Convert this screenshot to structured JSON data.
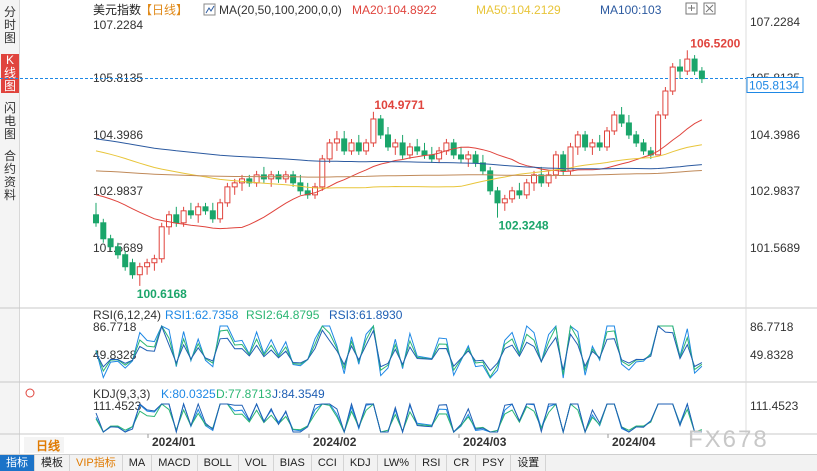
{
  "sidebar": {
    "tabs": [
      {
        "label": "分时图",
        "active": false
      },
      {
        "label": "K线图",
        "active": true
      },
      {
        "label": "闪电图",
        "active": false
      },
      {
        "label": "合约资料",
        "active": false
      }
    ]
  },
  "header": {
    "instrument": "美元指数",
    "period_tag": "【日线】",
    "ma_params": "MA(20,50,100,200,0,0)",
    "ma20_label": "MA20:104.8922",
    "ma50_label": "MA50:104.2129",
    "ma100_label": "MA100:103"
  },
  "window_icons": [
    "settings-icon",
    "close-icon"
  ],
  "colors": {
    "up": "#e0443d",
    "down": "#1aa56a",
    "ma20": "#e0443d",
    "ma50": "#e8c53a",
    "ma100": "#2c5aa0",
    "ma200": "#c08a5a",
    "rsi1": "#1e88e5",
    "rsi2": "#2bb673",
    "rsi3": "#1f5fb4",
    "k": "#1e88e5",
    "d": "#2bb673",
    "j": "#1f5fb4",
    "current": "#1e88e5"
  },
  "price_axis": {
    "ticks": [
      "107.2284",
      "105.8135",
      "104.3986",
      "102.9837",
      "101.5689"
    ]
  },
  "current_price": "105.8134",
  "annotations": {
    "high": "106.5200",
    "peak_feb": "104.9771",
    "low_jan": "100.6168",
    "low_mar": "102.3248"
  },
  "rsi": {
    "title": "RSI(6,12,24)",
    "rsi1": "RSI1:62.7358",
    "rsi2": "RSI2:64.8795",
    "rsi3": "RSI3:61.8930",
    "ticks": [
      "86.7718",
      "49.8328"
    ]
  },
  "kdj": {
    "title": "KDJ(9,3,3)",
    "k": "K:80.0325",
    "d": "D:77.8713",
    "j": "J:84.3549",
    "ticks": [
      "111.4523"
    ]
  },
  "date_axis": {
    "labels": [
      "2024/01",
      "2024/02",
      "2024/03",
      "2024/04"
    ]
  },
  "period_label": "日线",
  "watermark": "FX678",
  "toolbar": {
    "items": [
      "指标",
      "模板",
      "VIP指标",
      "MA",
      "MACD",
      "BOLL",
      "VOL",
      "BIAS",
      "CCI",
      "KDJ",
      "LW%",
      "RSI",
      "CR",
      "PSY",
      "设置"
    ]
  },
  "chart_data": {
    "type": "candlestick",
    "title": "美元指数 日线",
    "ylim": [
      100.3,
      107.5
    ],
    "candles": [
      [
        102.4,
        102.7,
        102.1,
        102.2
      ],
      [
        102.2,
        102.3,
        101.7,
        101.8
      ],
      [
        101.8,
        101.9,
        101.5,
        101.6
      ],
      [
        101.6,
        101.7,
        101.3,
        101.4
      ],
      [
        101.4,
        101.5,
        101.0,
        101.1
      ],
      [
        101.2,
        101.3,
        100.8,
        100.9
      ],
      [
        100.9,
        101.2,
        100.62,
        101.1
      ],
      [
        101.1,
        101.3,
        100.9,
        101.2
      ],
      [
        101.2,
        101.4,
        101.0,
        101.3
      ],
      [
        101.3,
        102.2,
        101.2,
        102.1
      ],
      [
        102.1,
        102.5,
        101.9,
        102.4
      ],
      [
        102.4,
        102.6,
        102.1,
        102.2
      ],
      [
        102.2,
        102.6,
        102.1,
        102.5
      ],
      [
        102.5,
        102.7,
        102.3,
        102.4
      ],
      [
        102.4,
        102.7,
        102.2,
        102.6
      ],
      [
        102.6,
        102.7,
        102.4,
        102.5
      ],
      [
        102.5,
        102.7,
        102.2,
        102.3
      ],
      [
        102.3,
        102.8,
        102.2,
        102.7
      ],
      [
        102.7,
        103.2,
        102.6,
        103.1
      ],
      [
        103.1,
        103.3,
        102.9,
        103.2
      ],
      [
        103.2,
        103.4,
        103.0,
        103.3
      ],
      [
        103.3,
        103.4,
        103.1,
        103.2
      ],
      [
        103.2,
        103.5,
        103.1,
        103.4
      ],
      [
        103.4,
        103.6,
        103.2,
        103.3
      ],
      [
        103.3,
        103.5,
        103.1,
        103.4
      ],
      [
        103.4,
        103.5,
        103.2,
        103.3
      ],
      [
        103.3,
        103.5,
        103.2,
        103.4
      ],
      [
        103.4,
        103.5,
        103.1,
        103.2
      ],
      [
        103.2,
        103.4,
        102.9,
        103.0
      ],
      [
        103.0,
        103.2,
        102.8,
        102.9
      ],
      [
        102.9,
        103.2,
        102.8,
        103.1
      ],
      [
        103.1,
        103.9,
        103.0,
        103.8
      ],
      [
        103.8,
        104.3,
        103.7,
        104.2
      ],
      [
        104.2,
        104.5,
        104.0,
        104.3
      ],
      [
        104.3,
        104.5,
        103.9,
        104.0
      ],
      [
        104.0,
        104.3,
        103.9,
        104.2
      ],
      [
        104.2,
        104.4,
        103.9,
        104.0
      ],
      [
        104.0,
        104.3,
        103.9,
        104.2
      ],
      [
        104.2,
        104.98,
        104.1,
        104.8
      ],
      [
        104.8,
        104.9,
        104.3,
        104.4
      ],
      [
        104.4,
        104.6,
        104.0,
        104.1
      ],
      [
        104.1,
        104.3,
        103.9,
        104.2
      ],
      [
        104.2,
        104.4,
        103.8,
        103.9
      ],
      [
        103.9,
        104.2,
        103.8,
        104.1
      ],
      [
        104.1,
        104.3,
        103.9,
        104.0
      ],
      [
        104.0,
        104.2,
        103.8,
        103.9
      ],
      [
        103.9,
        104.1,
        103.7,
        103.8
      ],
      [
        103.8,
        104.1,
        103.7,
        104.0
      ],
      [
        104.0,
        104.3,
        103.9,
        104.2
      ],
      [
        104.2,
        104.3,
        103.8,
        103.9
      ],
      [
        103.9,
        104.1,
        103.7,
        103.8
      ],
      [
        103.8,
        104.0,
        103.6,
        103.9
      ],
      [
        103.9,
        104.0,
        103.6,
        103.7
      ],
      [
        103.7,
        103.9,
        103.4,
        103.5
      ],
      [
        103.5,
        103.6,
        102.9,
        103.0
      ],
      [
        103.0,
        103.1,
        102.33,
        102.7
      ],
      [
        102.7,
        102.9,
        102.5,
        102.8
      ],
      [
        102.8,
        103.1,
        102.7,
        103.0
      ],
      [
        103.0,
        103.2,
        102.8,
        102.9
      ],
      [
        102.9,
        103.3,
        102.8,
        103.2
      ],
      [
        103.2,
        103.5,
        103.0,
        103.4
      ],
      [
        103.4,
        103.6,
        103.1,
        103.2
      ],
      [
        103.2,
        103.5,
        103.1,
        103.4
      ],
      [
        103.4,
        104.0,
        103.3,
        103.9
      ],
      [
        103.9,
        104.0,
        103.4,
        103.5
      ],
      [
        103.5,
        104.2,
        103.4,
        104.1
      ],
      [
        104.1,
        104.5,
        103.9,
        104.4
      ],
      [
        104.4,
        104.5,
        104.0,
        104.1
      ],
      [
        104.1,
        104.3,
        103.9,
        104.2
      ],
      [
        104.2,
        104.4,
        104.0,
        104.1
      ],
      [
        104.1,
        104.6,
        104.0,
        104.5
      ],
      [
        104.5,
        105.0,
        104.4,
        104.9
      ],
      [
        104.9,
        105.1,
        104.6,
        104.7
      ],
      [
        104.7,
        104.9,
        104.3,
        104.4
      ],
      [
        104.4,
        104.5,
        104.1,
        104.2
      ],
      [
        104.2,
        104.3,
        103.9,
        104.0
      ],
      [
        104.0,
        104.1,
        103.8,
        103.9
      ],
      [
        103.9,
        105.0,
        103.9,
        104.9
      ],
      [
        104.9,
        105.6,
        104.8,
        105.5
      ],
      [
        105.5,
        106.2,
        105.4,
        106.1
      ],
      [
        106.1,
        106.3,
        105.8,
        106.0
      ],
      [
        106.0,
        106.52,
        105.9,
        106.3
      ],
      [
        106.3,
        106.4,
        105.9,
        106.0
      ],
      [
        106.0,
        106.1,
        105.7,
        105.81
      ]
    ]
  }
}
